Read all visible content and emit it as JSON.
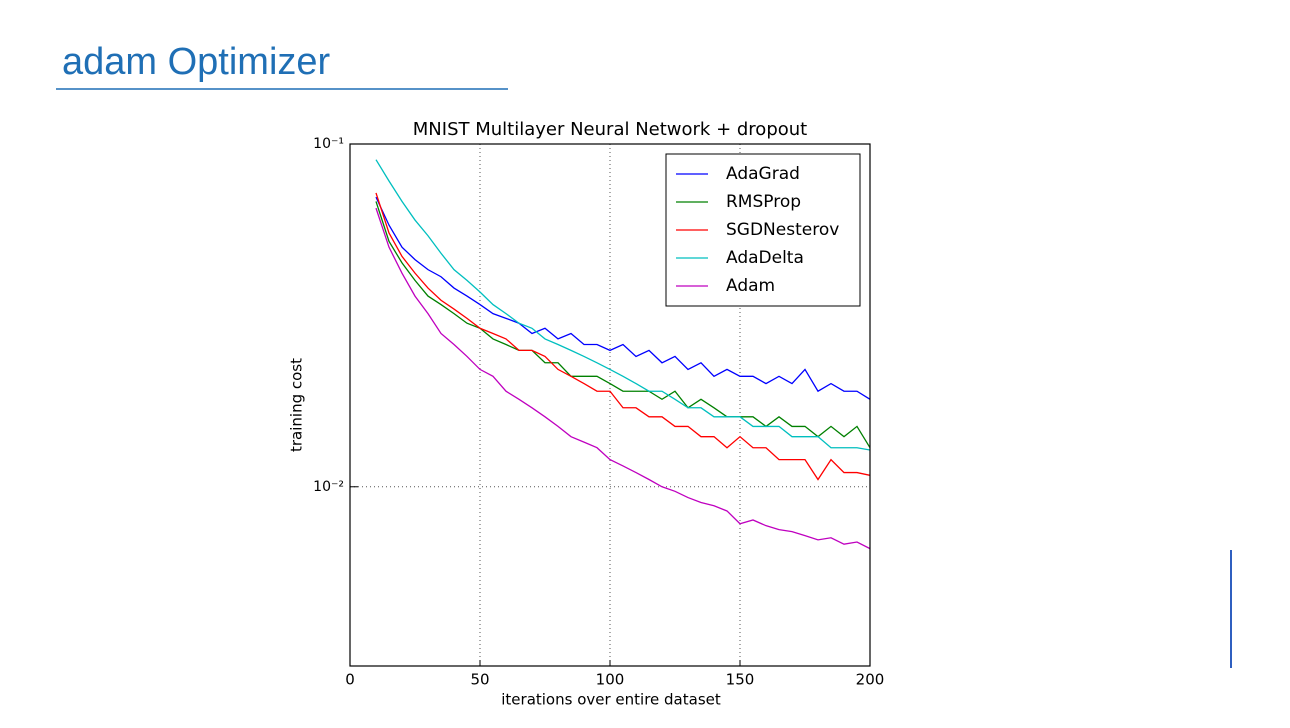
{
  "slide": {
    "title": "adam Optimizer"
  },
  "chart_data": {
    "type": "line",
    "title": "MNIST Multilayer Neural Network + dropout",
    "x_label": "iterations over entire dataset",
    "y_label": "training cost",
    "y_log": true,
    "grid": true,
    "legend": "upper right",
    "xlim": [
      0,
      200
    ],
    "xticks": [
      0,
      50,
      100,
      150,
      200
    ],
    "ylim": [
      0.003,
      0.1
    ],
    "yticks": [
      {
        "value": 0.01,
        "label": "10⁻²"
      },
      {
        "value": 0.1,
        "label": "10⁻¹"
      }
    ],
    "x": [
      10,
      15,
      20,
      25,
      30,
      35,
      40,
      45,
      50,
      55,
      60,
      65,
      70,
      75,
      80,
      85,
      90,
      95,
      100,
      105,
      110,
      115,
      120,
      125,
      130,
      135,
      140,
      145,
      150,
      155,
      160,
      165,
      170,
      175,
      180,
      185,
      190,
      195,
      200
    ],
    "series": [
      {
        "name": "AdaGrad",
        "color": "#0000ff",
        "values": [
          0.07,
          0.058,
          0.05,
          0.046,
          0.043,
          0.041,
          0.038,
          0.036,
          0.034,
          0.032,
          0.031,
          0.03,
          0.028,
          0.029,
          0.027,
          0.028,
          0.026,
          0.026,
          0.025,
          0.026,
          0.024,
          0.025,
          0.023,
          0.024,
          0.022,
          0.023,
          0.021,
          0.022,
          0.021,
          0.021,
          0.02,
          0.021,
          0.02,
          0.022,
          0.019,
          0.02,
          0.019,
          0.019,
          0.018
        ]
      },
      {
        "name": "RMSProp",
        "color": "#008000",
        "values": [
          0.068,
          0.052,
          0.045,
          0.04,
          0.036,
          0.034,
          0.032,
          0.03,
          0.029,
          0.027,
          0.026,
          0.025,
          0.025,
          0.023,
          0.023,
          0.021,
          0.021,
          0.021,
          0.02,
          0.019,
          0.019,
          0.019,
          0.018,
          0.019,
          0.017,
          0.018,
          0.017,
          0.016,
          0.016,
          0.016,
          0.015,
          0.016,
          0.015,
          0.015,
          0.014,
          0.015,
          0.014,
          0.015,
          0.013
        ]
      },
      {
        "name": "SGDNesterov",
        "color": "#ff0000",
        "values": [
          0.072,
          0.055,
          0.047,
          0.042,
          0.038,
          0.035,
          0.033,
          0.031,
          0.029,
          0.028,
          0.027,
          0.025,
          0.025,
          0.024,
          0.022,
          0.021,
          0.02,
          0.019,
          0.019,
          0.017,
          0.017,
          0.016,
          0.016,
          0.015,
          0.015,
          0.014,
          0.014,
          0.013,
          0.014,
          0.013,
          0.013,
          0.012,
          0.012,
          0.012,
          0.0105,
          0.012,
          0.011,
          0.011,
          0.0108
        ]
      },
      {
        "name": "AdaDelta",
        "color": "#00bfbf",
        "values": [
          0.09,
          0.078,
          0.068,
          0.06,
          0.054,
          0.048,
          0.043,
          0.04,
          0.037,
          0.034,
          0.032,
          0.03,
          0.029,
          0.027,
          0.026,
          0.025,
          0.024,
          0.023,
          0.022,
          0.021,
          0.02,
          0.019,
          0.019,
          0.018,
          0.017,
          0.017,
          0.016,
          0.016,
          0.016,
          0.015,
          0.015,
          0.015,
          0.014,
          0.014,
          0.014,
          0.013,
          0.013,
          0.013,
          0.0128
        ]
      },
      {
        "name": "Adam",
        "color": "#bf00bf",
        "values": [
          0.065,
          0.05,
          0.042,
          0.036,
          0.032,
          0.028,
          0.026,
          0.024,
          0.022,
          0.021,
          0.019,
          0.018,
          0.017,
          0.016,
          0.015,
          0.014,
          0.0135,
          0.013,
          0.012,
          0.0115,
          0.011,
          0.0105,
          0.01,
          0.0097,
          0.0093,
          0.009,
          0.0088,
          0.0085,
          0.0078,
          0.008,
          0.0077,
          0.0075,
          0.0074,
          0.0072,
          0.007,
          0.0071,
          0.0068,
          0.0069,
          0.0066
        ]
      }
    ]
  }
}
